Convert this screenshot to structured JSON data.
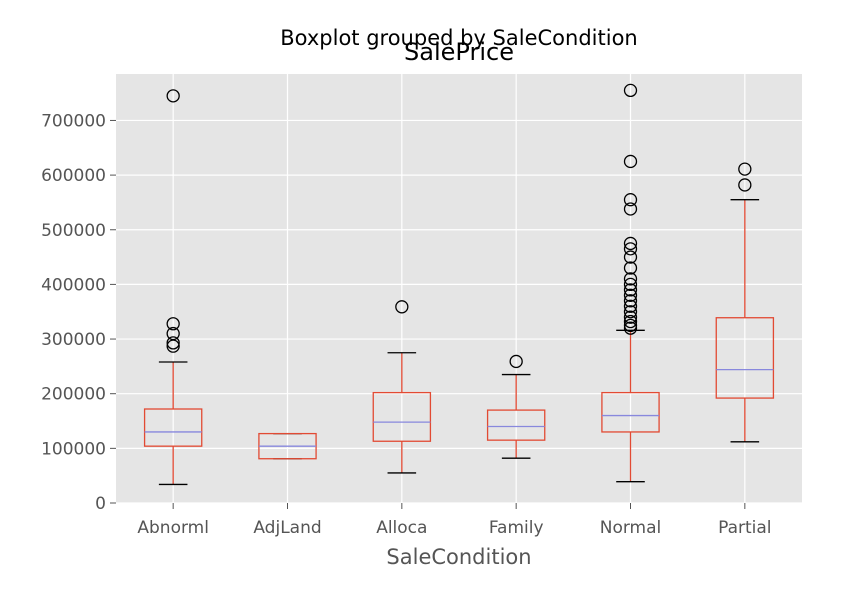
{
  "chart_data": {
    "type": "box",
    "suptitle": "Boxplot grouped by SaleCondition",
    "title": "SalePrice",
    "xlabel": "SaleCondition",
    "ylabel": "",
    "ylim": [
      0,
      785000
    ],
    "yticks": [
      0,
      100000,
      200000,
      300000,
      400000,
      500000,
      600000,
      700000
    ],
    "ytick_labels": [
      "0",
      "100000",
      "200000",
      "300000",
      "400000",
      "500000",
      "600000",
      "700000"
    ],
    "grid": true,
    "categories": [
      "Abnorml",
      "AdjLand",
      "Alloca",
      "Family",
      "Normal",
      "Partial"
    ],
    "boxes": [
      {
        "category": "Abnorml",
        "whisker_low": 34000,
        "q1": 104000,
        "median": 130000,
        "q3": 172000,
        "whisker_high": 258000,
        "outliers": [
          745000,
          328000,
          310000,
          293000,
          287000
        ]
      },
      {
        "category": "AdjLand",
        "whisker_low": 81000,
        "q1": 81000,
        "median": 104000,
        "q3": 127000,
        "whisker_high": 127000,
        "outliers": []
      },
      {
        "category": "Alloca",
        "whisker_low": 55000,
        "q1": 113000,
        "median": 148000,
        "q3": 202000,
        "whisker_high": 275000,
        "outliers": [
          359000
        ]
      },
      {
        "category": "Family",
        "whisker_low": 82000,
        "q1": 115000,
        "median": 140000,
        "q3": 170000,
        "whisker_high": 235000,
        "outliers": [
          259000
        ]
      },
      {
        "category": "Normal",
        "whisker_low": 39000,
        "q1": 130000,
        "median": 160000,
        "q3": 202000,
        "whisker_high": 316000,
        "outliers": [
          755000,
          625000,
          555000,
          538000,
          475000,
          465000,
          450000,
          430000,
          410000,
          400000,
          390000,
          380000,
          370000,
          360000,
          350000,
          340000,
          332000,
          325000,
          320000
        ]
      },
      {
        "category": "Partial",
        "whisker_low": 112000,
        "q1": 192000,
        "median": 244000,
        "q3": 339000,
        "whisker_high": 555000,
        "outliers": [
          611000,
          582000
        ]
      }
    ],
    "colors": {
      "box": "#e24a33",
      "median": "#8888dd",
      "whisker_cap": "#000000",
      "background": "#e5e5e5",
      "grid": "#ffffff",
      "outlier_edge": "#000000"
    }
  }
}
